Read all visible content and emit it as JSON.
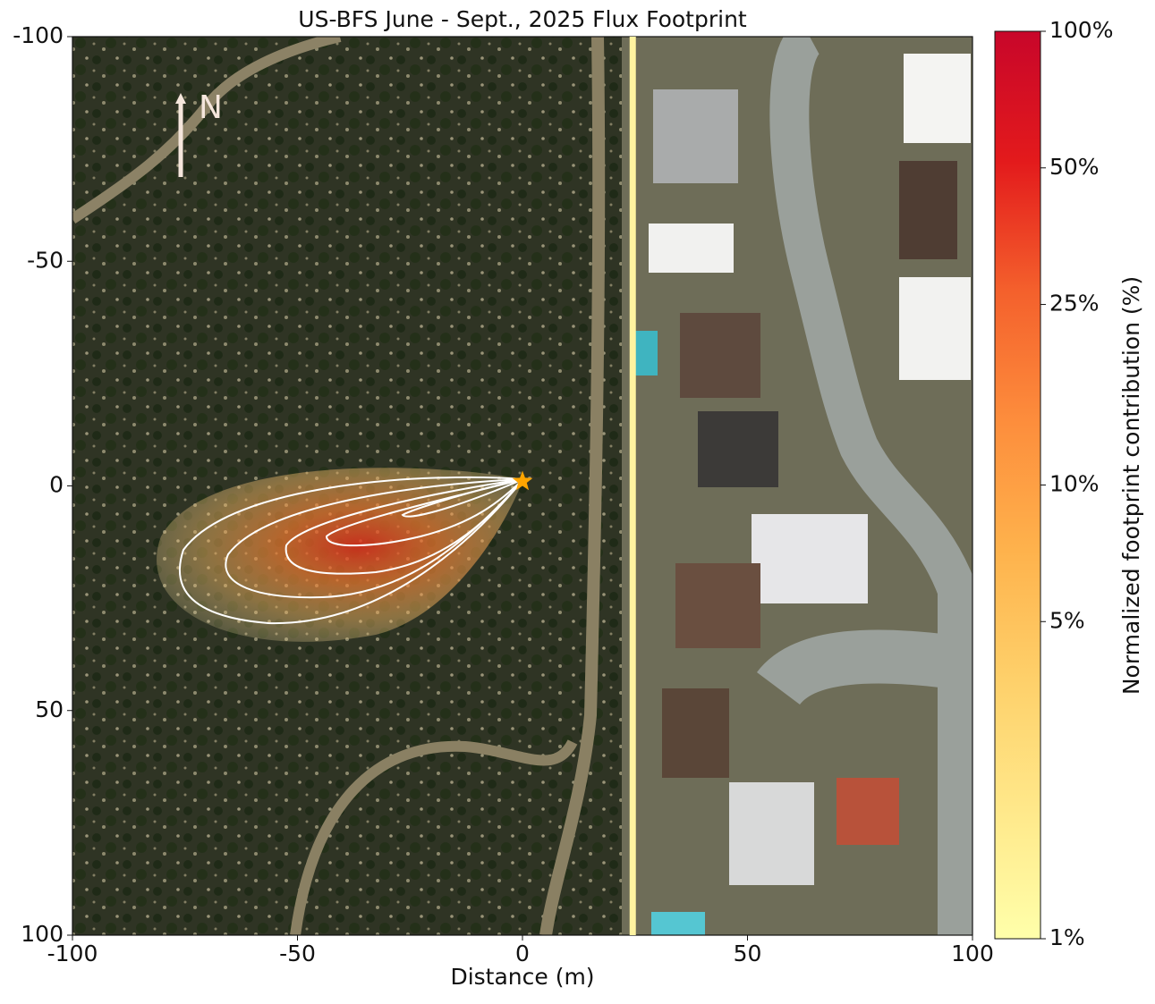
{
  "chart_data": {
    "type": "footprint",
    "title": "US-BFS June - Sept., 2025 Flux Footprint",
    "xlabel": "Distance (m)",
    "xlim": [
      -100,
      100
    ],
    "xticks": [
      -100,
      -50,
      0,
      50,
      100
    ],
    "ylim": [
      100,
      -100
    ],
    "yticks": [
      -100,
      -50,
      0,
      50,
      100
    ],
    "tower": {
      "x": 0,
      "y": -1,
      "color": "#ffa500"
    },
    "vlines": [
      {
        "x": 24.5,
        "color": "#fff3a0"
      }
    ],
    "north_label": "N",
    "colorbar": {
      "label": "Normalized footprint contribution (%)",
      "scale": "log",
      "lim": [
        1,
        100
      ],
      "ticks": [
        {
          "value": 1,
          "label": "1%"
        },
        {
          "value": 5,
          "label": "5%"
        },
        {
          "value": 10,
          "label": "10%"
        },
        {
          "value": 25,
          "label": "25%"
        },
        {
          "value": 50,
          "label": "50%"
        },
        {
          "value": 100,
          "label": "100%"
        }
      ],
      "colors": [
        "#ffffaa",
        "#ffe88a",
        "#fed06a",
        "#feb24c",
        "#fd8d3c",
        "#f4602c",
        "#e31a1c",
        "#c8062a"
      ]
    }
  }
}
